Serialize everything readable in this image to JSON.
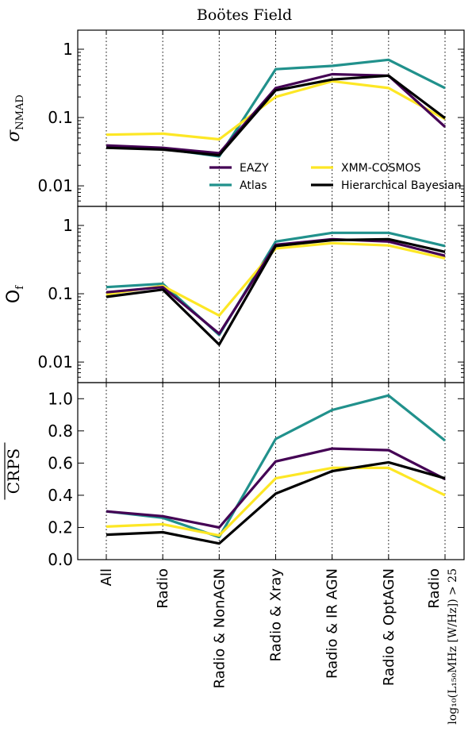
{
  "figure_title": "Boötes Field",
  "categories": [
    "All",
    "Radio",
    "Radio & NonAGN",
    "Radio & Xray",
    "Radio & IR AGN",
    "Radio & OptAGN",
    "Radio"
  ],
  "last_category_sublabel": "log₁₀(L₁₅₀MHz [W/Hz]) > 25",
  "colors": {
    "EAZY": "#440154",
    "Atlas": "#21918c",
    "XMM-COSMOS": "#fde725",
    "Hierarchical Bayesian": "#000000"
  },
  "legend_labels": [
    "EAZY",
    "XMM-COSMOS",
    "Atlas",
    "Hierarchical Bayesian"
  ],
  "chart_data": [
    {
      "type": "line",
      "panel": "top",
      "ylabel": "σNMAD",
      "yscale": "log",
      "ylim": [
        0.005,
        1.9
      ],
      "yticks": [
        0.01,
        0.1,
        1
      ],
      "ytick_labels": [
        "0.01",
        "0.1",
        "1"
      ],
      "legend_position": "lower-right",
      "series": [
        {
          "name": "EAZY",
          "values": [
            0.039,
            0.036,
            0.03,
            0.27,
            0.43,
            0.41,
            0.073
          ]
        },
        {
          "name": "Atlas",
          "values": [
            0.038,
            0.035,
            0.027,
            0.51,
            0.57,
            0.7,
            0.27
          ]
        },
        {
          "name": "XMM-COSMOS",
          "values": [
            0.056,
            0.058,
            0.048,
            0.2,
            0.34,
            0.27,
            0.095
          ]
        },
        {
          "name": "Hierarchical Bayesian",
          "values": [
            0.036,
            0.034,
            0.028,
            0.25,
            0.36,
            0.41,
            0.098
          ]
        }
      ]
    },
    {
      "type": "line",
      "panel": "middle",
      "ylabel": "Of",
      "yscale": "log",
      "ylim": [
        0.005,
        1.9
      ],
      "yticks": [
        0.01,
        0.1,
        1
      ],
      "ytick_labels": [
        "0.01",
        "0.1",
        "1"
      ],
      "series": [
        {
          "name": "EAZY",
          "values": [
            0.105,
            0.125,
            0.026,
            0.52,
            0.63,
            0.58,
            0.36
          ]
        },
        {
          "name": "Atlas",
          "values": [
            0.125,
            0.14,
            0.025,
            0.58,
            0.78,
            0.78,
            0.5
          ]
        },
        {
          "name": "XMM-COSMOS",
          "values": [
            0.098,
            0.13,
            0.048,
            0.46,
            0.55,
            0.51,
            0.33
          ]
        },
        {
          "name": "Hierarchical Bayesian",
          "values": [
            0.09,
            0.115,
            0.018,
            0.5,
            0.61,
            0.63,
            0.41
          ]
        }
      ]
    },
    {
      "type": "line",
      "panel": "bottom",
      "ylabel": "CRPS",
      "yscale": "linear",
      "ylim": [
        0.0,
        1.1
      ],
      "yticks": [
        0.0,
        0.2,
        0.4,
        0.6,
        0.8,
        1.0
      ],
      "ytick_labels": [
        "0.0",
        "0.2",
        "0.4",
        "0.6",
        "0.8",
        "1.0"
      ],
      "series": [
        {
          "name": "EAZY",
          "values": [
            0.3,
            0.27,
            0.2,
            0.61,
            0.69,
            0.68,
            0.5
          ]
        },
        {
          "name": "Atlas",
          "values": [
            0.3,
            0.26,
            0.14,
            0.75,
            0.93,
            1.02,
            0.74
          ]
        },
        {
          "name": "XMM-COSMOS",
          "values": [
            0.205,
            0.22,
            0.15,
            0.505,
            0.57,
            0.57,
            0.4
          ]
        },
        {
          "name": "Hierarchical Bayesian",
          "values": [
            0.155,
            0.17,
            0.1,
            0.41,
            0.55,
            0.605,
            0.505
          ]
        }
      ]
    }
  ]
}
